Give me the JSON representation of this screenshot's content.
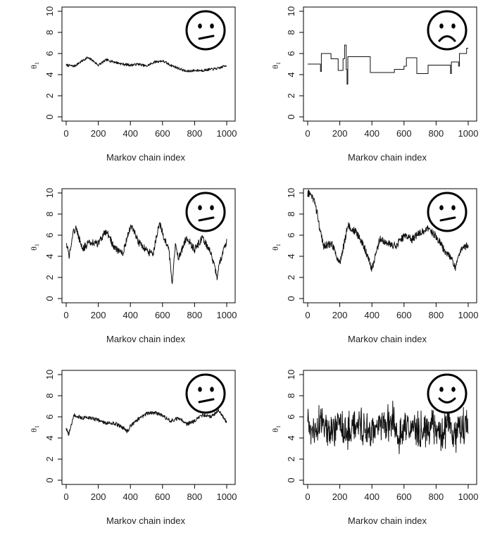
{
  "chart_data": [
    {
      "type": "line",
      "xlabel": "Markov chain index",
      "ylabel": "θ",
      "ylabel_subscript": "1",
      "xlim": [
        0,
        1000
      ],
      "ylim": [
        0,
        10
      ],
      "xticks": [
        "0",
        "200",
        "400",
        "600",
        "800",
        "1000"
      ],
      "yticks": [
        "0",
        "2",
        "4",
        "6",
        "8",
        "10"
      ],
      "face": "neutral",
      "series": [
        {
          "x": [
            0,
            50,
            100,
            130,
            160,
            200,
            250,
            300,
            350,
            400,
            450,
            500,
            550,
            600,
            650,
            700,
            750,
            800,
            850,
            900,
            950,
            1000
          ],
          "values": [
            4.9,
            4.8,
            5.3,
            5.6,
            5.4,
            4.9,
            5.4,
            5.2,
            5.0,
            4.9,
            5.0,
            4.8,
            5.2,
            5.3,
            4.9,
            4.6,
            4.3,
            4.4,
            4.4,
            4.5,
            4.6,
            4.9
          ]
        }
      ]
    },
    {
      "type": "line",
      "xlabel": "Markov chain index",
      "ylabel": "θ",
      "ylabel_subscript": "1",
      "xlim": [
        0,
        1000
      ],
      "ylim": [
        0,
        10
      ],
      "xticks": [
        "0",
        "200",
        "400",
        "600",
        "800",
        "1000"
      ],
      "yticks": [
        "0",
        "2",
        "4",
        "6",
        "8",
        "10"
      ],
      "face": "sad",
      "series": [
        {
          "step": true,
          "x": [
            0,
            75,
            80,
            85,
            145,
            190,
            220,
            230,
            240,
            245,
            250,
            385,
            390,
            530,
            540,
            600,
            615,
            670,
            680,
            740,
            750,
            890,
            895,
            940,
            945,
            990,
            1000
          ],
          "values": [
            5.0,
            5.0,
            4.3,
            6.0,
            5.5,
            4.4,
            5.5,
            6.8,
            4.5,
            3.1,
            5.7,
            5.7,
            4.2,
            4.2,
            4.5,
            4.8,
            5.6,
            5.6,
            4.1,
            4.1,
            4.9,
            4.1,
            5.2,
            4.8,
            6.0,
            6.5,
            6.5
          ]
        }
      ]
    },
    {
      "type": "line",
      "xlabel": "Markov chain index",
      "ylabel": "θ",
      "ylabel_subscript": "1",
      "xlim": [
        0,
        1000
      ],
      "ylim": [
        0,
        10
      ],
      "xticks": [
        "0",
        "200",
        "400",
        "600",
        "800",
        "1000"
      ],
      "yticks": [
        "0",
        "2",
        "4",
        "6",
        "8",
        "10"
      ],
      "face": "neutral",
      "series": [
        {
          "x": [
            0,
            20,
            40,
            60,
            100,
            150,
            200,
            250,
            300,
            350,
            400,
            420,
            450,
            500,
            540,
            580,
            600,
            640,
            660,
            680,
            700,
            750,
            800,
            850,
            900,
            940,
            960,
            1000
          ],
          "values": [
            5.3,
            4.0,
            6.2,
            6.7,
            4.7,
            5.4,
            5.2,
            6.4,
            4.8,
            4.2,
            6.8,
            6.5,
            5.3,
            4.6,
            4.1,
            7.2,
            6.2,
            4.5,
            1.5,
            5.0,
            3.8,
            5.8,
            4.6,
            5.8,
            4.3,
            2.1,
            3.5,
            5.4
          ]
        }
      ]
    },
    {
      "type": "line",
      "xlabel": "Markov chain index",
      "ylabel": "θ",
      "ylabel_subscript": "1",
      "xlim": [
        0,
        1000
      ],
      "ylim": [
        0,
        10
      ],
      "xticks": [
        "0",
        "200",
        "400",
        "600",
        "800",
        "1000"
      ],
      "yticks": [
        "0",
        "2",
        "4",
        "6",
        "8",
        "10"
      ],
      "face": "neutral",
      "series": [
        {
          "x": [
            0,
            20,
            40,
            60,
            80,
            100,
            150,
            200,
            250,
            300,
            350,
            400,
            450,
            500,
            550,
            600,
            650,
            700,
            750,
            800,
            850,
            900,
            920,
            950,
            1000
          ],
          "values": [
            10.0,
            9.8,
            9.2,
            8.0,
            6.2,
            5.0,
            5.2,
            3.3,
            6.9,
            6.3,
            5.0,
            2.8,
            5.7,
            5.2,
            5.0,
            5.9,
            5.6,
            6.3,
            6.6,
            5.9,
            4.6,
            3.8,
            2.9,
            4.6,
            5.1
          ]
        }
      ]
    },
    {
      "type": "line",
      "xlabel": "Markov chain index",
      "ylabel": "θ",
      "ylabel_subscript": "1",
      "xlim": [
        0,
        1000
      ],
      "ylim": [
        0,
        10
      ],
      "xticks": [
        "0",
        "200",
        "400",
        "600",
        "800",
        "1000"
      ],
      "yticks": [
        "0",
        "2",
        "4",
        "6",
        "8",
        "10"
      ],
      "face": "neutral",
      "series": [
        {
          "x": [
            0,
            15,
            30,
            50,
            100,
            150,
            200,
            250,
            300,
            350,
            380,
            400,
            450,
            500,
            550,
            600,
            650,
            700,
            750,
            800,
            850,
            900,
            950,
            1000
          ],
          "values": [
            4.9,
            4.3,
            5.2,
            6.2,
            5.9,
            5.9,
            5.7,
            5.4,
            5.4,
            5.0,
            4.6,
            5.1,
            5.8,
            6.3,
            6.4,
            6.1,
            5.6,
            5.9,
            5.3,
            5.6,
            6.2,
            6.0,
            6.6,
            5.5
          ]
        }
      ]
    },
    {
      "type": "line",
      "xlabel": "Markov chain index",
      "ylabel": "θ",
      "ylabel_subscript": "1",
      "xlim": [
        0,
        1000
      ],
      "ylim": [
        0,
        10
      ],
      "xticks": [
        "0",
        "200",
        "400",
        "600",
        "800",
        "1000"
      ],
      "yticks": [
        "0",
        "2",
        "4",
        "6",
        "8",
        "10"
      ],
      "face": "happy",
      "series": [
        {
          "noise": "white",
          "mean": 5.0,
          "x": [
            0,
            40,
            90,
            140,
            200,
            250,
            320,
            390,
            450,
            530,
            570,
            620,
            700,
            770,
            830,
            870,
            920,
            960,
            1000
          ],
          "values": [
            5.5,
            4.1,
            6.8,
            3.5,
            5.9,
            2.9,
            6.5,
            3.3,
            6.0,
            7.5,
            2.5,
            5.6,
            3.2,
            5.9,
            2.8,
            6.4,
            3.4,
            5.5,
            4.4
          ]
        }
      ]
    }
  ]
}
